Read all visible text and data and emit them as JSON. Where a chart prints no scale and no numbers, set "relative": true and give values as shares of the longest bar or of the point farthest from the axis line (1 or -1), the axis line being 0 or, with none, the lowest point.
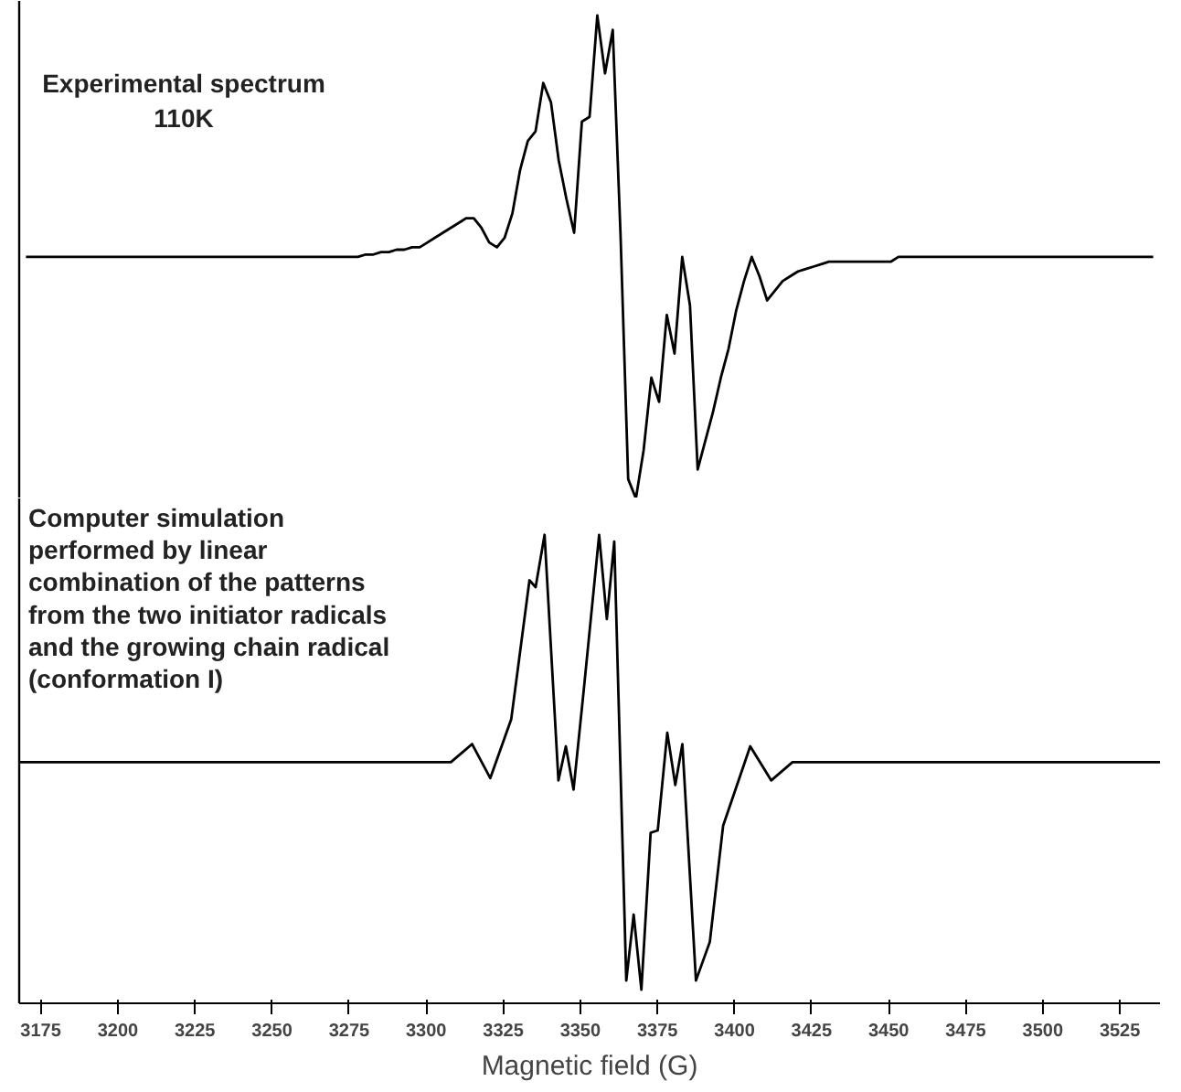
{
  "chart_data": [
    {
      "type": "line",
      "relative": true,
      "tick_labels": false,
      "grid": false,
      "annotations": [
        "Experimental spectrum\n110K"
      ],
      "categories": [
        null,
        null,
        null,
        null,
        null,
        null,
        null,
        null,
        null,
        null,
        null,
        null,
        null,
        null,
        null,
        null,
        null,
        null,
        null,
        null,
        null,
        null,
        null,
        null,
        null,
        null,
        null,
        null,
        null,
        null,
        null,
        null,
        null,
        null,
        null,
        null,
        null,
        null,
        null,
        null,
        null,
        null,
        null,
        null,
        null,
        null,
        null,
        null,
        null,
        null,
        null,
        null,
        null,
        null,
        null,
        null,
        null,
        null,
        null,
        null,
        null,
        null,
        null,
        null,
        null,
        null,
        null,
        null,
        null,
        null,
        null,
        null,
        null,
        null,
        null,
        null,
        null,
        null,
        null,
        null,
        null,
        null,
        null,
        null,
        null,
        null,
        null,
        null,
        null,
        null,
        null,
        null,
        null,
        null,
        null,
        null,
        null,
        null,
        null,
        null,
        null,
        null,
        null,
        null,
        null,
        null,
        null,
        null,
        null,
        null,
        null,
        null,
        null,
        null,
        null,
        null,
        null,
        null,
        null,
        null,
        null,
        null,
        null,
        null,
        null,
        null,
        null,
        null,
        null,
        null,
        null,
        null,
        null,
        null,
        null,
        null,
        null,
        null,
        null,
        null,
        null,
        null,
        null,
        null,
        null,
        null,
        null
      ],
      "series": [
        {
          "color": "#000000",
          "values": [
            0.5,
            0.5,
            0.5,
            0.5,
            0.5,
            0.5,
            0.5,
            0.5,
            0.5,
            0.5,
            0.5,
            0.5,
            0.5,
            0.5,
            0.5,
            0.5,
            0.5,
            0.5,
            0.5,
            0.5,
            0.5,
            0.5,
            0.5,
            0.5,
            0.5,
            0.5,
            0.5,
            0.5,
            0.5,
            0.5,
            0.5,
            0.5,
            0.5,
            0.5,
            0.5,
            0.5,
            0.5,
            0.5,
            0.5,
            0.5,
            0.5,
            0.5,
            0.5,
            0.5,
            0.505,
            0.505,
            0.51,
            0.51,
            0.515,
            0.515,
            0.52,
            0.52,
            0.53,
            0.54,
            0.55,
            0.56,
            0.57,
            0.58,
            0.58,
            0.56,
            0.53,
            0.52,
            0.54,
            0.59,
            0.68,
            0.74,
            0.76,
            0.86,
            0.82,
            0.7,
            0.62,
            0.55,
            0.78,
            0.79,
            1.0,
            0.88,
            0.97,
            0.55,
            0.04,
            0.0,
            0.1,
            0.25,
            0.2,
            0.38,
            0.3,
            0.5,
            0.4,
            0.06,
            0.12,
            0.18,
            0.25,
            0.31,
            0.39,
            0.45,
            0.5,
            0.46,
            0.41,
            0.43,
            0.45,
            0.46,
            0.47,
            0.475,
            0.48,
            0.485,
            0.49,
            0.49,
            0.49,
            0.49,
            0.49,
            0.49,
            0.49,
            0.49,
            0.49,
            0.5,
            0.5,
            0.5,
            0.5,
            0.5,
            0.5,
            0.5,
            0.5,
            0.5,
            0.5,
            0.5,
            0.5,
            0.5,
            0.5,
            0.5,
            0.5,
            0.5,
            0.5,
            0.5,
            0.5,
            0.5,
            0.5,
            0.5,
            0.5,
            0.5,
            0.5,
            0.5,
            0.5,
            0.5,
            0.5,
            0.5,
            0.5,
            0.5,
            0.5
          ]
        }
      ]
    },
    {
      "type": "line",
      "relative": true,
      "tick_labels": "x",
      "grid": false,
      "xlim": [
        3168,
        3538
      ],
      "xticks": [
        3175,
        3200,
        3225,
        3250,
        3275,
        3300,
        3325,
        3350,
        3375,
        3400,
        3425,
        3450,
        3475,
        3500,
        3525
      ],
      "xlabel": "Magnetic field (G)",
      "annotations": [
        "Computer simulation\nperformed by linear\ncombination of the patterns\nfrom the two initiator radicals\nand the growing chain radical\n(conformation I)"
      ],
      "series": [
        {
          "color": "#000000",
          "x": [
            3168,
            3274.7,
            3308,
            3314.9,
            3320.8,
            3327.6,
            3333.5,
            3335.5,
            3338.4,
            3342.9,
            3345.3,
            3347.8,
            3351.2,
            3356.1,
            3358.6,
            3361,
            3364.9,
            3367.3,
            3369.8,
            3372.8,
            3375.1,
            3378.2,
            3380.8,
            3383.1,
            3387.5,
            3392,
            3396.3,
            3405.1,
            3411.9,
            3418.8,
            3538
          ],
          "values": [
            0.5,
            0.5,
            0.5,
            0.54,
            0.465,
            0.595,
            0.9,
            0.885,
            1.0,
            0.46,
            0.535,
            0.44,
            0.665,
            1.0,
            0.815,
            0.985,
            0.02,
            0.165,
            0.0,
            0.345,
            0.35,
            0.565,
            0.45,
            0.54,
            0.02,
            0.105,
            0.36,
            0.535,
            0.46,
            0.5,
            0.5
          ]
        }
      ]
    }
  ]
}
